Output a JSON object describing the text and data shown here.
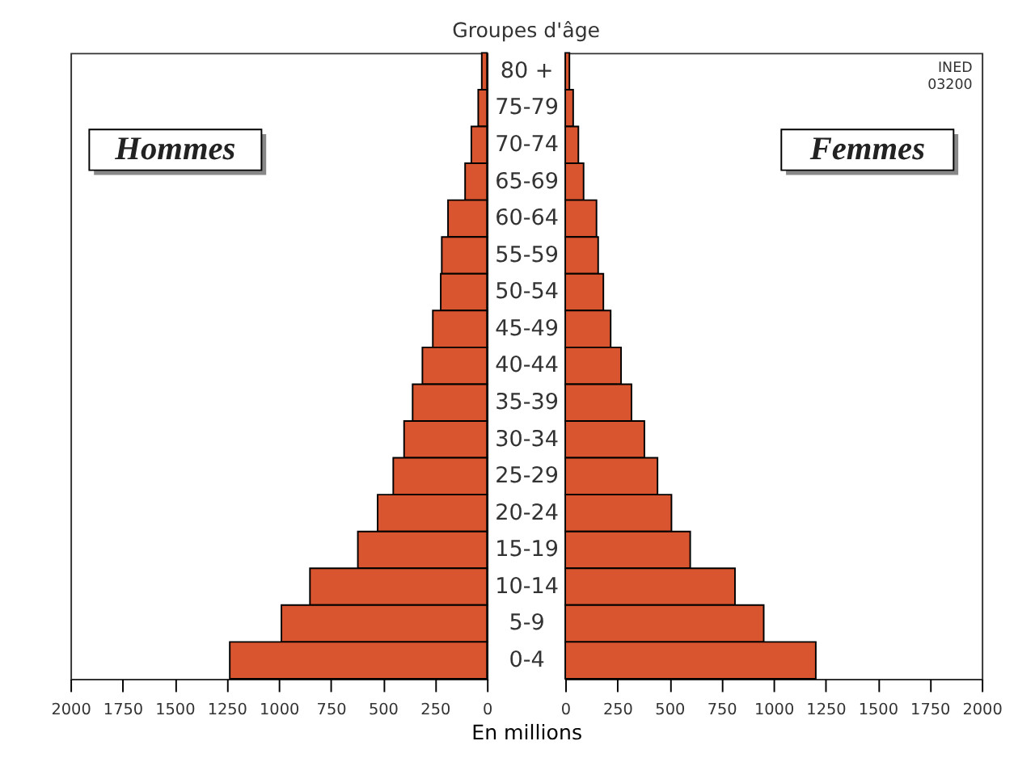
{
  "chart_data": [
    {
      "type": "bar",
      "orientation": "horizontal",
      "title": "Groupes d'âge",
      "xlabel": "En millions",
      "categories": [
        "80 +",
        "75-79",
        "70-74",
        "65-69",
        "60-64",
        "55-59",
        "50-54",
        "45-49",
        "40-44",
        "35-39",
        "30-34",
        "25-29",
        "20-24",
        "15-19",
        "10-14",
        "5-9",
        "0-4"
      ],
      "series": [
        {
          "color": "#d9552f",
          "values": [
            25,
            42,
            75,
            105,
            187,
            217,
            222,
            260,
            310,
            357,
            398,
            450,
            525,
            620,
            850,
            987,
            1235
          ]
        }
      ],
      "xlim": [
        2000,
        0
      ],
      "xticks": [
        2000,
        1750,
        1500,
        1250,
        1000,
        750,
        500,
        250,
        0
      ],
      "annotations": [
        "Hommes"
      ],
      "grid": false
    },
    {
      "type": "bar",
      "orientation": "horizontal",
      "categories": [
        null,
        null,
        null,
        null,
        null,
        null,
        null,
        null,
        null,
        null,
        null,
        null,
        null,
        null,
        null,
        null,
        null
      ],
      "series": [
        {
          "color": "#d9552f",
          "values": [
            20,
            38,
            63,
            88,
            150,
            158,
            183,
            218,
            268,
            318,
            380,
            443,
            510,
            600,
            815,
            953,
            1203
          ]
        }
      ],
      "xlim": [
        0,
        2000
      ],
      "xticks": [
        0,
        250,
        500,
        750,
        1000,
        1250,
        1500,
        1750,
        2000
      ],
      "annotations": [
        "Femmes",
        "INED\n03200"
      ],
      "tick_labels": "x",
      "grid": false
    }
  ]
}
